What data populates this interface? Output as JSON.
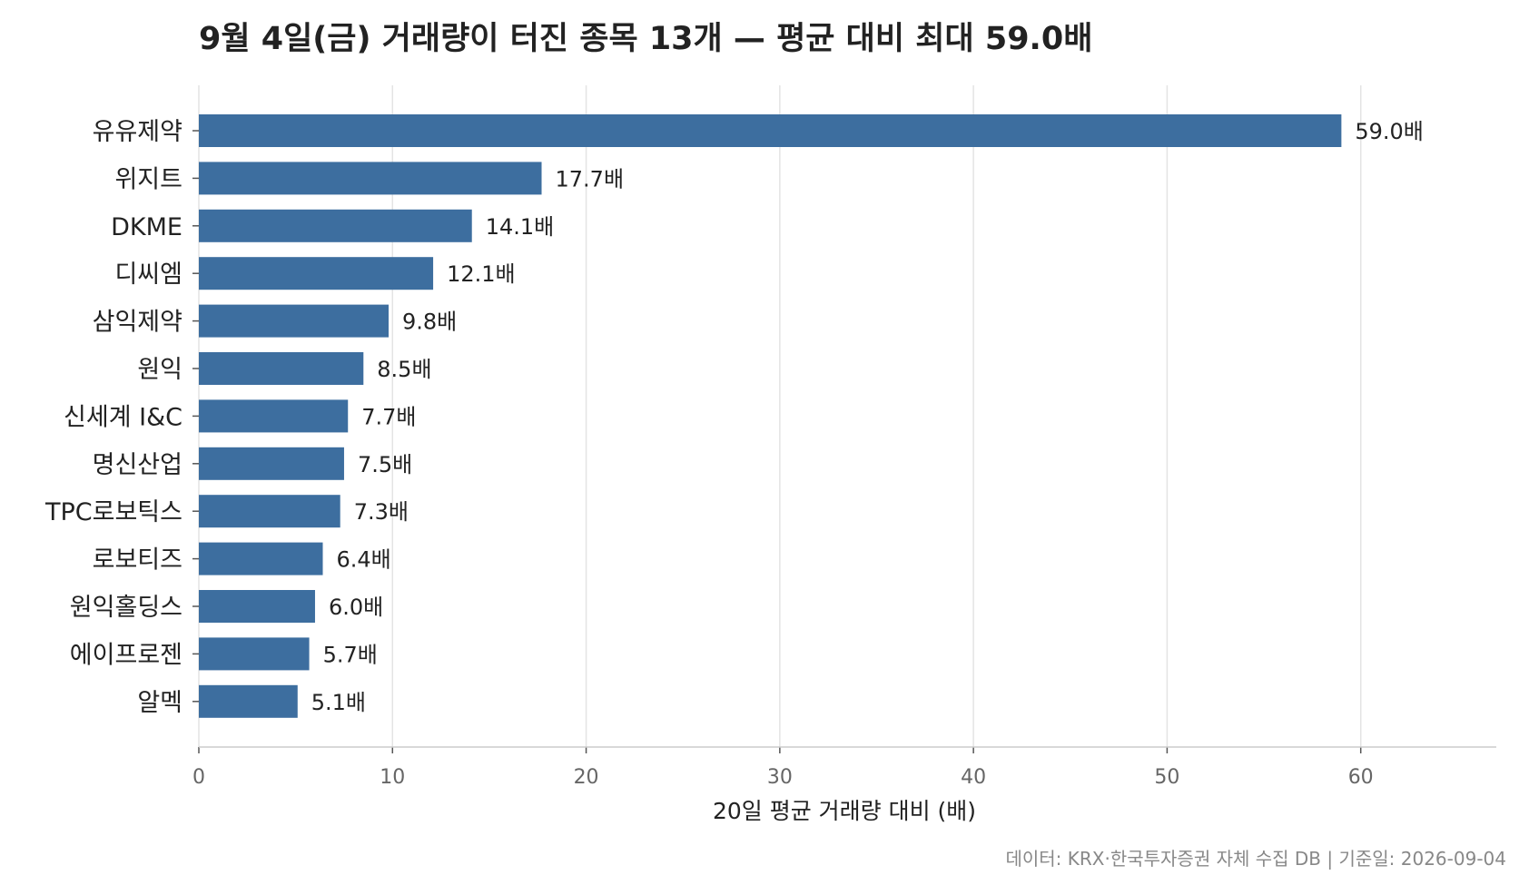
{
  "chart_data": {
    "type": "bar",
    "orientation": "horizontal",
    "title": "9월 4일(금) 거래량이 터진 종목 13개 — 평균 대비 최대 59.0배",
    "xlabel": "20일 평균 거래량 대비 (배)",
    "ylabel": "",
    "xlim": [
      0,
      67
    ],
    "xticks": [
      0,
      10,
      20,
      30,
      40,
      50,
      60
    ],
    "grid": "vertical",
    "bar_color": "#3d6e9f",
    "value_suffix": "배",
    "categories": [
      "유유제약",
      "위지트",
      "DKME",
      "디씨엠",
      "삼익제약",
      "원익",
      "신세계 I&C",
      "명신산업",
      "TPC로보틱스",
      "로보티즈",
      "원익홀딩스",
      "에이프로젠",
      "알멕"
    ],
    "values": [
      59.0,
      17.7,
      14.1,
      12.1,
      9.8,
      8.5,
      7.7,
      7.5,
      7.3,
      6.4,
      6.0,
      5.7,
      5.1
    ],
    "source": "데이터: KRX·한국투자증권 자체 수집 DB  |  기준일: 2026-09-04"
  }
}
